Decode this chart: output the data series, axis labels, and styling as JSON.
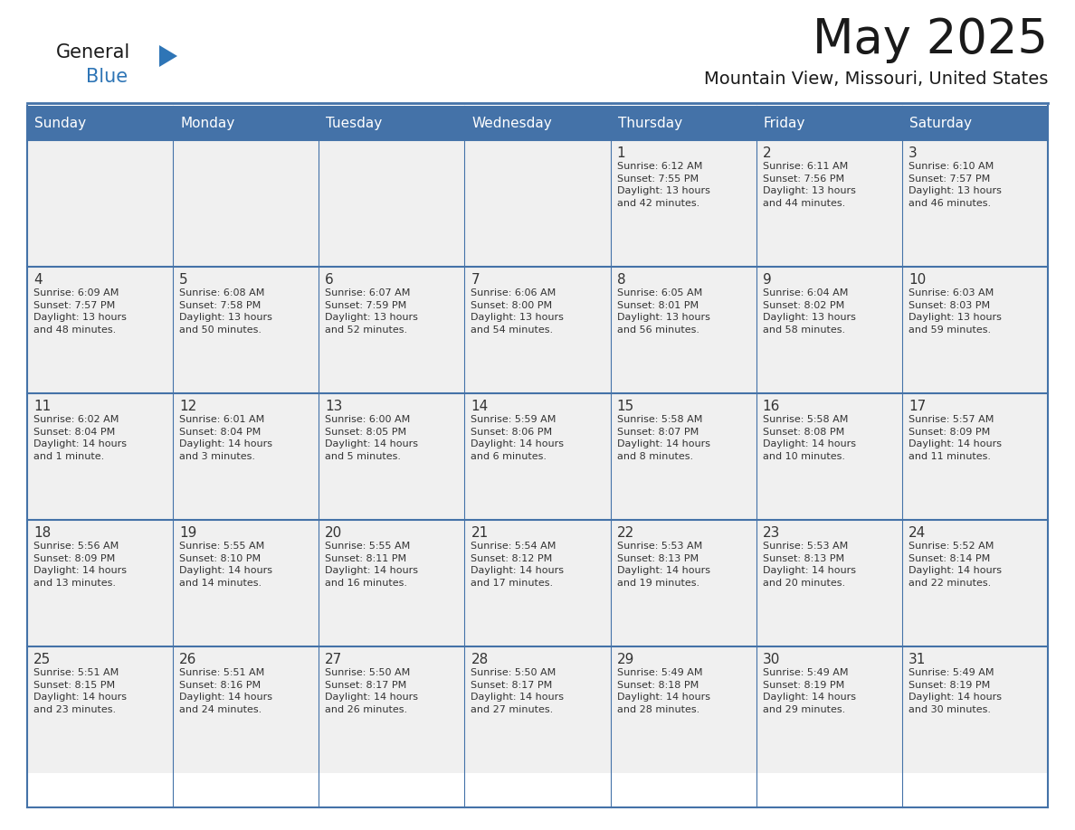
{
  "title": "May 2025",
  "subtitle": "Mountain View, Missouri, United States",
  "header_bg": "#4472A8",
  "header_text": "#FFFFFF",
  "day_names": [
    "Sunday",
    "Monday",
    "Tuesday",
    "Wednesday",
    "Thursday",
    "Friday",
    "Saturday"
  ],
  "row_bg": "#F0F0F0",
  "cell_text_color": "#333333",
  "date_color": "#333333",
  "line_color": "#4472A8",
  "calendar": [
    [
      {
        "day": "",
        "info": ""
      },
      {
        "day": "",
        "info": ""
      },
      {
        "day": "",
        "info": ""
      },
      {
        "day": "",
        "info": ""
      },
      {
        "day": "1",
        "info": "Sunrise: 6:12 AM\nSunset: 7:55 PM\nDaylight: 13 hours\nand 42 minutes."
      },
      {
        "day": "2",
        "info": "Sunrise: 6:11 AM\nSunset: 7:56 PM\nDaylight: 13 hours\nand 44 minutes."
      },
      {
        "day": "3",
        "info": "Sunrise: 6:10 AM\nSunset: 7:57 PM\nDaylight: 13 hours\nand 46 minutes."
      }
    ],
    [
      {
        "day": "4",
        "info": "Sunrise: 6:09 AM\nSunset: 7:57 PM\nDaylight: 13 hours\nand 48 minutes."
      },
      {
        "day": "5",
        "info": "Sunrise: 6:08 AM\nSunset: 7:58 PM\nDaylight: 13 hours\nand 50 minutes."
      },
      {
        "day": "6",
        "info": "Sunrise: 6:07 AM\nSunset: 7:59 PM\nDaylight: 13 hours\nand 52 minutes."
      },
      {
        "day": "7",
        "info": "Sunrise: 6:06 AM\nSunset: 8:00 PM\nDaylight: 13 hours\nand 54 minutes."
      },
      {
        "day": "8",
        "info": "Sunrise: 6:05 AM\nSunset: 8:01 PM\nDaylight: 13 hours\nand 56 minutes."
      },
      {
        "day": "9",
        "info": "Sunrise: 6:04 AM\nSunset: 8:02 PM\nDaylight: 13 hours\nand 58 minutes."
      },
      {
        "day": "10",
        "info": "Sunrise: 6:03 AM\nSunset: 8:03 PM\nDaylight: 13 hours\nand 59 minutes."
      }
    ],
    [
      {
        "day": "11",
        "info": "Sunrise: 6:02 AM\nSunset: 8:04 PM\nDaylight: 14 hours\nand 1 minute."
      },
      {
        "day": "12",
        "info": "Sunrise: 6:01 AM\nSunset: 8:04 PM\nDaylight: 14 hours\nand 3 minutes."
      },
      {
        "day": "13",
        "info": "Sunrise: 6:00 AM\nSunset: 8:05 PM\nDaylight: 14 hours\nand 5 minutes."
      },
      {
        "day": "14",
        "info": "Sunrise: 5:59 AM\nSunset: 8:06 PM\nDaylight: 14 hours\nand 6 minutes."
      },
      {
        "day": "15",
        "info": "Sunrise: 5:58 AM\nSunset: 8:07 PM\nDaylight: 14 hours\nand 8 minutes."
      },
      {
        "day": "16",
        "info": "Sunrise: 5:58 AM\nSunset: 8:08 PM\nDaylight: 14 hours\nand 10 minutes."
      },
      {
        "day": "17",
        "info": "Sunrise: 5:57 AM\nSunset: 8:09 PM\nDaylight: 14 hours\nand 11 minutes."
      }
    ],
    [
      {
        "day": "18",
        "info": "Sunrise: 5:56 AM\nSunset: 8:09 PM\nDaylight: 14 hours\nand 13 minutes."
      },
      {
        "day": "19",
        "info": "Sunrise: 5:55 AM\nSunset: 8:10 PM\nDaylight: 14 hours\nand 14 minutes."
      },
      {
        "day": "20",
        "info": "Sunrise: 5:55 AM\nSunset: 8:11 PM\nDaylight: 14 hours\nand 16 minutes."
      },
      {
        "day": "21",
        "info": "Sunrise: 5:54 AM\nSunset: 8:12 PM\nDaylight: 14 hours\nand 17 minutes."
      },
      {
        "day": "22",
        "info": "Sunrise: 5:53 AM\nSunset: 8:13 PM\nDaylight: 14 hours\nand 19 minutes."
      },
      {
        "day": "23",
        "info": "Sunrise: 5:53 AM\nSunset: 8:13 PM\nDaylight: 14 hours\nand 20 minutes."
      },
      {
        "day": "24",
        "info": "Sunrise: 5:52 AM\nSunset: 8:14 PM\nDaylight: 14 hours\nand 22 minutes."
      }
    ],
    [
      {
        "day": "25",
        "info": "Sunrise: 5:51 AM\nSunset: 8:15 PM\nDaylight: 14 hours\nand 23 minutes."
      },
      {
        "day": "26",
        "info": "Sunrise: 5:51 AM\nSunset: 8:16 PM\nDaylight: 14 hours\nand 24 minutes."
      },
      {
        "day": "27",
        "info": "Sunrise: 5:50 AM\nSunset: 8:17 PM\nDaylight: 14 hours\nand 26 minutes."
      },
      {
        "day": "28",
        "info": "Sunrise: 5:50 AM\nSunset: 8:17 PM\nDaylight: 14 hours\nand 27 minutes."
      },
      {
        "day": "29",
        "info": "Sunrise: 5:49 AM\nSunset: 8:18 PM\nDaylight: 14 hours\nand 28 minutes."
      },
      {
        "day": "30",
        "info": "Sunrise: 5:49 AM\nSunset: 8:19 PM\nDaylight: 14 hours\nand 29 minutes."
      },
      {
        "day": "31",
        "info": "Sunrise: 5:49 AM\nSunset: 8:19 PM\nDaylight: 14 hours\nand 30 minutes."
      }
    ]
  ],
  "logo_text_general": "General",
  "logo_text_blue": "Blue",
  "logo_triangle_color": "#2E75B6",
  "fig_width": 11.88,
  "fig_height": 9.18
}
